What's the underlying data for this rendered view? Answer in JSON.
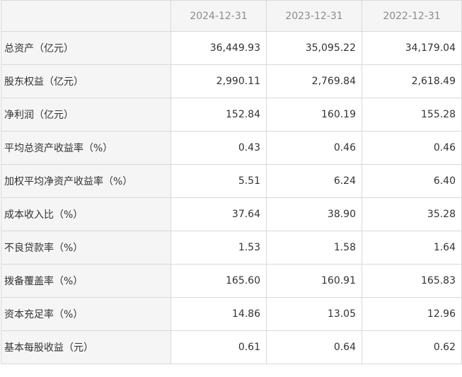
{
  "table": {
    "columns": [
      "",
      "2024-12-31",
      "2023-12-31",
      "2022-12-31"
    ],
    "rows": [
      {
        "label": "总资产（亿元）",
        "values": [
          "36,449.93",
          "35,095.22",
          "34,179.04"
        ]
      },
      {
        "label": "股东权益（亿元）",
        "values": [
          "2,990.11",
          "2,769.84",
          "2,618.49"
        ]
      },
      {
        "label": "净利润（亿元）",
        "values": [
          "152.84",
          "160.19",
          "155.28"
        ]
      },
      {
        "label": "平均总资产收益率（%）",
        "values": [
          "0.43",
          "0.46",
          "0.46"
        ]
      },
      {
        "label": "加权平均净资产收益率（%）",
        "values": [
          "5.51",
          "6.24",
          "6.40"
        ]
      },
      {
        "label": "成本收入比（%）",
        "values": [
          "37.64",
          "38.90",
          "35.28"
        ]
      },
      {
        "label": "不良贷款率（%）",
        "values": [
          "1.53",
          "1.58",
          "1.64"
        ]
      },
      {
        "label": "拨备覆盖率（%）",
        "values": [
          "165.60",
          "160.91",
          "165.83"
        ]
      },
      {
        "label": "资本充足率（%）",
        "values": [
          "14.86",
          "13.05",
          "12.96"
        ]
      },
      {
        "label": "基本每股收益（元）",
        "values": [
          "0.61",
          "0.64",
          "0.62"
        ]
      }
    ]
  }
}
